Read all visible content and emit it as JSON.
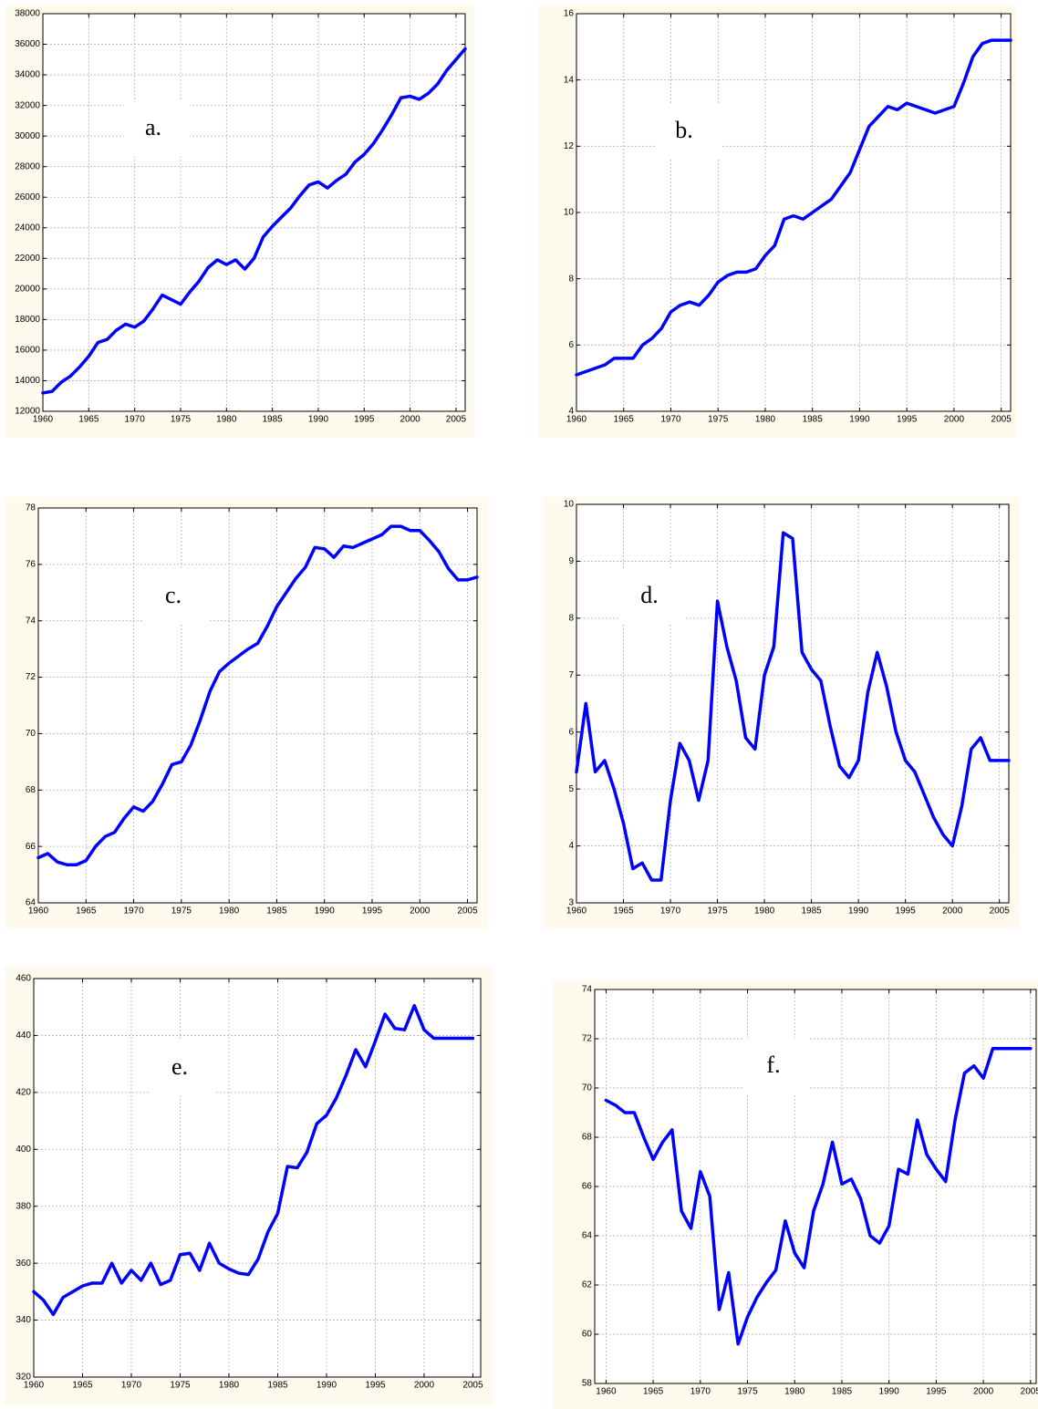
{
  "chart_data": [
    {
      "type": "line",
      "annotation": "a.",
      "x": [
        1960,
        1961,
        1962,
        1963,
        1964,
        1965,
        1966,
        1967,
        1968,
        1969,
        1970,
        1971,
        1972,
        1973,
        1974,
        1975,
        1976,
        1977,
        1978,
        1979,
        1980,
        1981,
        1982,
        1983,
        1984,
        1985,
        1986,
        1987,
        1988,
        1989,
        1990,
        1991,
        1992,
        1993,
        1994,
        1995,
        1996,
        1997,
        1998,
        1999,
        2000,
        2001,
        2002,
        2003,
        2004,
        2005,
        2006
      ],
      "values": [
        13200,
        13300,
        13900,
        14300,
        14900,
        15600,
        16500,
        16700,
        17300,
        17700,
        17500,
        17900,
        18700,
        19600,
        19300,
        19000,
        19800,
        20500,
        21400,
        21900,
        21600,
        21900,
        21300,
        22000,
        23400,
        24100,
        24700,
        25300,
        26100,
        26800,
        27000,
        26600,
        27100,
        27500,
        28300,
        28800,
        29500,
        30400,
        31400,
        32500,
        32600,
        32400,
        32800,
        33400,
        34300,
        35000,
        35700
      ],
      "color": "#0000ff",
      "xlim": [
        1960,
        2006
      ],
      "ylim": [
        12000,
        38000
      ],
      "xticks": [
        1960,
        1965,
        1970,
        1975,
        1980,
        1985,
        1990,
        1995,
        2000,
        2005
      ],
      "yticks": [
        12000,
        14000,
        16000,
        18000,
        20000,
        22000,
        24000,
        26000,
        28000,
        30000,
        32000,
        34000,
        36000,
        38000
      ],
      "grid": true
    },
    {
      "type": "line",
      "annotation": "b.",
      "x": [
        1960,
        1961,
        1962,
        1963,
        1964,
        1965,
        1966,
        1967,
        1968,
        1969,
        1970,
        1971,
        1972,
        1973,
        1974,
        1975,
        1976,
        1977,
        1978,
        1979,
        1980,
        1981,
        1982,
        1983,
        1984,
        1985,
        1986,
        1987,
        1988,
        1989,
        1990,
        1991,
        1992,
        1993,
        1994,
        1995,
        1996,
        1997,
        1998,
        1999,
        2000,
        2001,
        2002,
        2003,
        2004,
        2005,
        2006
      ],
      "values": [
        5.1,
        5.2,
        5.3,
        5.4,
        5.6,
        5.6,
        5.6,
        6.0,
        6.2,
        6.5,
        7.0,
        7.2,
        7.3,
        7.2,
        7.5,
        7.9,
        8.1,
        8.2,
        8.2,
        8.3,
        8.7,
        9.0,
        9.8,
        9.9,
        9.8,
        10.0,
        10.2,
        10.4,
        10.8,
        11.2,
        11.9,
        12.6,
        12.9,
        13.2,
        13.1,
        13.3,
        13.2,
        13.1,
        13.0,
        13.1,
        13.2,
        13.9,
        14.7,
        15.1,
        15.2,
        15.2,
        15.2
      ],
      "color": "#0000ff",
      "xlim": [
        1960,
        2006
      ],
      "ylim": [
        4,
        16
      ],
      "xticks": [
        1960,
        1965,
        1970,
        1975,
        1980,
        1985,
        1990,
        1995,
        2000,
        2005
      ],
      "yticks": [
        4,
        6,
        8,
        10,
        12,
        14,
        16
      ],
      "grid": true
    },
    {
      "type": "line",
      "annotation": "c.",
      "x": [
        1960,
        1961,
        1962,
        1963,
        1964,
        1965,
        1966,
        1967,
        1968,
        1969,
        1970,
        1971,
        1972,
        1973,
        1974,
        1975,
        1976,
        1977,
        1978,
        1979,
        1980,
        1981,
        1982,
        1983,
        1984,
        1985,
        1986,
        1987,
        1988,
        1989,
        1990,
        1991,
        1992,
        1993,
        1994,
        1995,
        1996,
        1997,
        1998,
        1999,
        2000,
        2001,
        2002,
        2003,
        2004,
        2005,
        2006
      ],
      "values": [
        65.6,
        65.75,
        65.45,
        65.35,
        65.35,
        65.5,
        66.0,
        66.35,
        66.5,
        67.0,
        67.4,
        67.25,
        67.6,
        68.2,
        68.9,
        69.0,
        69.6,
        70.5,
        71.5,
        72.2,
        72.5,
        72.75,
        73.0,
        73.2,
        73.8,
        74.5,
        75.0,
        75.5,
        75.9,
        76.6,
        76.55,
        76.25,
        76.65,
        76.6,
        76.75,
        76.9,
        77.05,
        77.35,
        77.35,
        77.2,
        77.2,
        76.85,
        76.45,
        75.85,
        75.45,
        75.45,
        75.55
      ],
      "color": "#0000ff",
      "xlim": [
        1960,
        2006
      ],
      "ylim": [
        64,
        78
      ],
      "xticks": [
        1960,
        1965,
        1970,
        1975,
        1980,
        1985,
        1990,
        1995,
        2000,
        2005
      ],
      "yticks": [
        64,
        66,
        68,
        70,
        72,
        74,
        76,
        78
      ],
      "grid": true
    },
    {
      "type": "line",
      "annotation": "d.",
      "x": [
        1960,
        1961,
        1962,
        1963,
        1964,
        1965,
        1966,
        1967,
        1968,
        1969,
        1970,
        1971,
        1972,
        1973,
        1974,
        1975,
        1976,
        1977,
        1978,
        1979,
        1980,
        1981,
        1982,
        1983,
        1984,
        1985,
        1986,
        1987,
        1988,
        1989,
        1990,
        1991,
        1992,
        1993,
        1994,
        1995,
        1996,
        1997,
        1998,
        1999,
        2000,
        2001,
        2002,
        2003,
        2004,
        2005,
        2006
      ],
      "values": [
        5.3,
        6.5,
        5.3,
        5.5,
        5.0,
        4.4,
        3.6,
        3.7,
        3.4,
        3.4,
        4.8,
        5.8,
        5.5,
        4.8,
        5.5,
        8.3,
        7.5,
        6.9,
        5.9,
        5.7,
        7.0,
        7.5,
        9.5,
        9.4,
        7.4,
        7.1,
        6.9,
        6.1,
        5.4,
        5.2,
        5.5,
        6.7,
        7.4,
        6.8,
        6.0,
        5.5,
        5.3,
        4.9,
        4.5,
        4.2,
        4.0,
        4.7,
        5.7,
        5.9,
        5.5,
        5.5,
        5.5
      ],
      "color": "#0000ff",
      "xlim": [
        1960,
        2006
      ],
      "ylim": [
        3,
        10
      ],
      "xticks": [
        1960,
        1965,
        1970,
        1975,
        1980,
        1985,
        1990,
        1995,
        2000,
        2005
      ],
      "yticks": [
        3,
        4,
        5,
        6,
        7,
        8,
        9,
        10
      ],
      "grid": true
    },
    {
      "type": "line",
      "annotation": "e.",
      "x": [
        1960,
        1961,
        1962,
        1963,
        1964,
        1965,
        1966,
        1967,
        1968,
        1969,
        1970,
        1971,
        1972,
        1973,
        1974,
        1975,
        1976,
        1977,
        1978,
        1979,
        1980,
        1981,
        1982,
        1983,
        1984,
        1985,
        1986,
        1987,
        1988,
        1989,
        1990,
        1991,
        1992,
        1993,
        1994,
        1995,
        1996,
        1997,
        1998,
        1999,
        2000,
        2001,
        2002,
        2003,
        2004,
        2005
      ],
      "values": [
        350,
        347,
        342,
        348,
        350,
        352,
        353,
        353,
        360,
        353,
        357.5,
        354,
        360,
        352.5,
        354,
        363,
        363.5,
        357.5,
        367,
        360,
        358,
        356.5,
        356,
        361.5,
        371,
        377.5,
        394,
        393.5,
        399,
        409,
        412,
        418,
        426,
        435,
        429,
        438,
        447.5,
        442.5,
        442,
        450.5,
        442,
        439,
        439,
        439,
        439,
        439
      ],
      "color": "#0000ff",
      "xlim": [
        1960,
        2005.8
      ],
      "ylim": [
        320,
        460
      ],
      "xticks": [
        1960,
        1965,
        1970,
        1975,
        1980,
        1985,
        1990,
        1995,
        2000,
        2005
      ],
      "yticks": [
        320,
        340,
        360,
        380,
        400,
        420,
        440,
        460
      ],
      "grid": true
    },
    {
      "type": "line",
      "annotation": "f.",
      "x": [
        1960,
        1961,
        1962,
        1963,
        1964,
        1965,
        1966,
        1967,
        1968,
        1969,
        1970,
        1971,
        1972,
        1973,
        1974,
        1975,
        1976,
        1977,
        1978,
        1979,
        1980,
        1981,
        1982,
        1983,
        1984,
        1985,
        1986,
        1987,
        1988,
        1989,
        1990,
        1991,
        1992,
        1993,
        1994,
        1995,
        1996,
        1997,
        1998,
        1999,
        2000,
        2001,
        2002,
        2003,
        2004,
        2005
      ],
      "values": [
        69.5,
        69.3,
        69.0,
        69.0,
        68.0,
        67.1,
        67.8,
        68.3,
        65.0,
        64.3,
        66.6,
        65.6,
        61.0,
        62.5,
        59.6,
        60.7,
        61.5,
        62.1,
        62.6,
        64.6,
        63.3,
        62.7,
        65.0,
        66.1,
        67.8,
        66.1,
        66.3,
        65.5,
        64.0,
        63.7,
        64.4,
        66.7,
        66.5,
        68.7,
        67.3,
        66.7,
        66.2,
        68.7,
        70.6,
        70.9,
        70.4,
        71.6,
        71.6,
        71.6,
        71.6,
        71.6
      ],
      "color": "#0000ff",
      "xlim": [
        1958.8,
        2005.6
      ],
      "ylim": [
        58,
        74
      ],
      "xticks": [
        1960,
        1965,
        1970,
        1975,
        1980,
        1985,
        1990,
        1995,
        2000,
        2005
      ],
      "yticks": [
        58,
        60,
        62,
        64,
        66,
        68,
        70,
        72,
        74
      ],
      "grid": true
    }
  ]
}
